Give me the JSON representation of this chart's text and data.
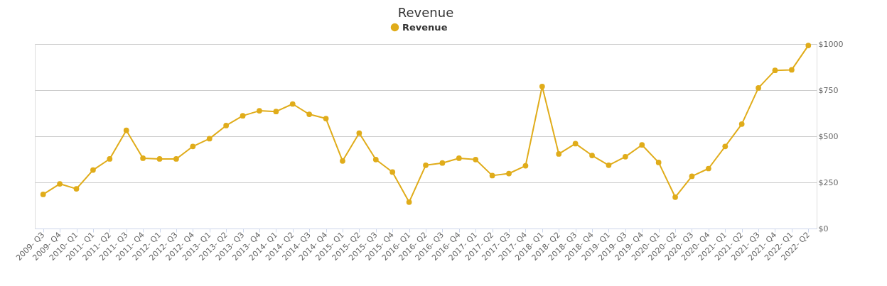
{
  "chart_data": {
    "type": "line",
    "title": "Revenue",
    "categories": [
      "2009- Q3",
      "2009- Q4",
      "2010- Q1",
      "2011- Q1",
      "2011- Q2",
      "2011- Q3",
      "2011- Q4",
      "2012- Q1",
      "2012- Q3",
      "2012- Q4",
      "2013- Q1",
      "2013- Q2",
      "2013- Q3",
      "2013- Q4",
      "2014- Q1",
      "2014- Q2",
      "2014- Q3",
      "2014- Q4",
      "2015- Q1",
      "2015- Q2",
      "2015- Q3",
      "2015- Q4",
      "2016- Q1",
      "2016- Q2",
      "2016- Q3",
      "2016- Q4",
      "2017- Q1",
      "2017- Q2",
      "2017- Q3",
      "2017- Q4",
      "2018- Q1",
      "2018- Q2",
      "2018- Q3",
      "2018- Q4",
      "2019- Q1",
      "2019- Q3",
      "2019- Q4",
      "2020- Q1",
      "2020- Q2",
      "2020- Q3",
      "2020- Q4",
      "2021- Q1",
      "2021- Q2",
      "2021- Q3",
      "2021- Q4",
      "2022- Q1",
      "2022- Q2"
    ],
    "series": [
      {
        "name": "Revenue",
        "color": "#e0ac1a",
        "values": [
          185,
          242,
          215,
          317,
          377,
          532,
          381,
          377,
          377,
          445,
          487,
          558,
          611,
          638,
          634,
          675,
          619,
          596,
          366,
          517,
          374,
          306,
          143,
          343,
          355,
          381,
          374,
          287,
          298,
          340,
          770,
          404,
          460,
          396,
          343,
          389,
          453,
          358,
          170,
          283,
          325,
          445,
          566,
          762,
          857,
          860,
          992
        ]
      }
    ],
    "ylim": [
      0,
      1000
    ],
    "yticks": [
      {
        "value": 0,
        "label": "$0"
      },
      {
        "value": 250,
        "label": "$250"
      },
      {
        "value": 500,
        "label": "$500"
      },
      {
        "value": 750,
        "label": "$750"
      },
      {
        "value": 1000,
        "label": "$1000"
      }
    ],
    "grid": "y",
    "legend": "top",
    "marker": "circle",
    "line_style": "solid"
  }
}
